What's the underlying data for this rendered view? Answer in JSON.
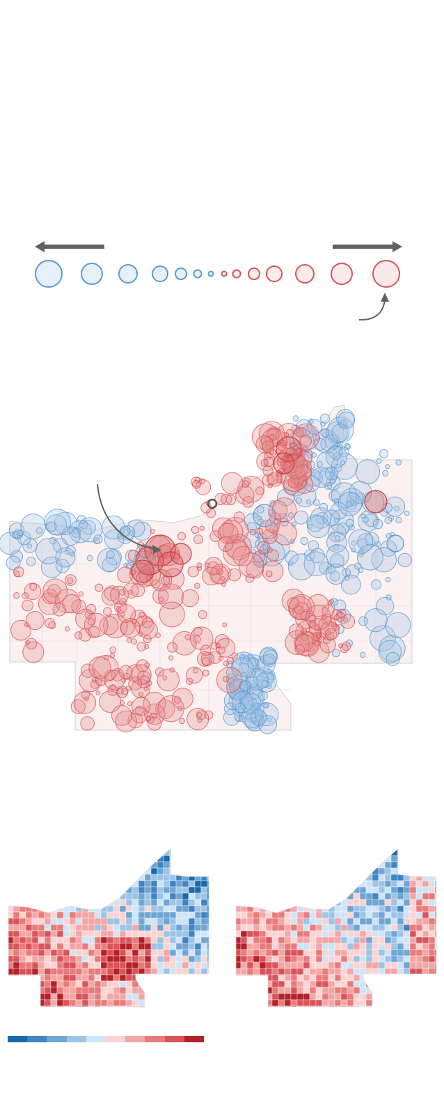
{
  "arrows": {
    "left": "arrow-left-icon",
    "right": "arrow-right-icon",
    "curved_pointer_legend": "curved-arrow-icon",
    "curved_pointer_map": "curved-arrow-icon"
  },
  "colors": {
    "blue_stroke": "#5b9bd0",
    "blue_fill": "#dde9f6",
    "red_stroke": "#d9545a",
    "red_fill": "#f7dada",
    "highlight_ring": "#555555",
    "arrow_gray": "#616161"
  },
  "size_legend": {
    "circles": [
      {
        "side": "blue",
        "level": 6
      },
      {
        "side": "blue",
        "level": 5
      },
      {
        "side": "blue",
        "level": 4
      },
      {
        "side": "blue",
        "level": 3
      },
      {
        "side": "blue",
        "level": 2
      },
      {
        "side": "blue",
        "level": 1
      },
      {
        "side": "blue",
        "level": 0
      },
      {
        "side": "red",
        "level": 0
      },
      {
        "side": "red",
        "level": 1
      },
      {
        "side": "red",
        "level": 2
      },
      {
        "side": "red",
        "level": 3
      },
      {
        "side": "red",
        "level": 4
      },
      {
        "side": "red",
        "level": 5
      },
      {
        "side": "red",
        "level": 6
      }
    ],
    "highlighted_level": "red-6"
  },
  "maps": {
    "bubble_map": "county-precinct-shift-map",
    "small_map_left": "precinct-result-map-a",
    "small_map_right": "precinct-result-map-b"
  },
  "color_scale": [
    "#1a6aab",
    "#3f85c2",
    "#6fa5d4",
    "#9cc4e6",
    "#cfe4f6",
    "#fbd3d3",
    "#f4a6a6",
    "#ea7b7b",
    "#d9545a",
    "#b52128"
  ]
}
